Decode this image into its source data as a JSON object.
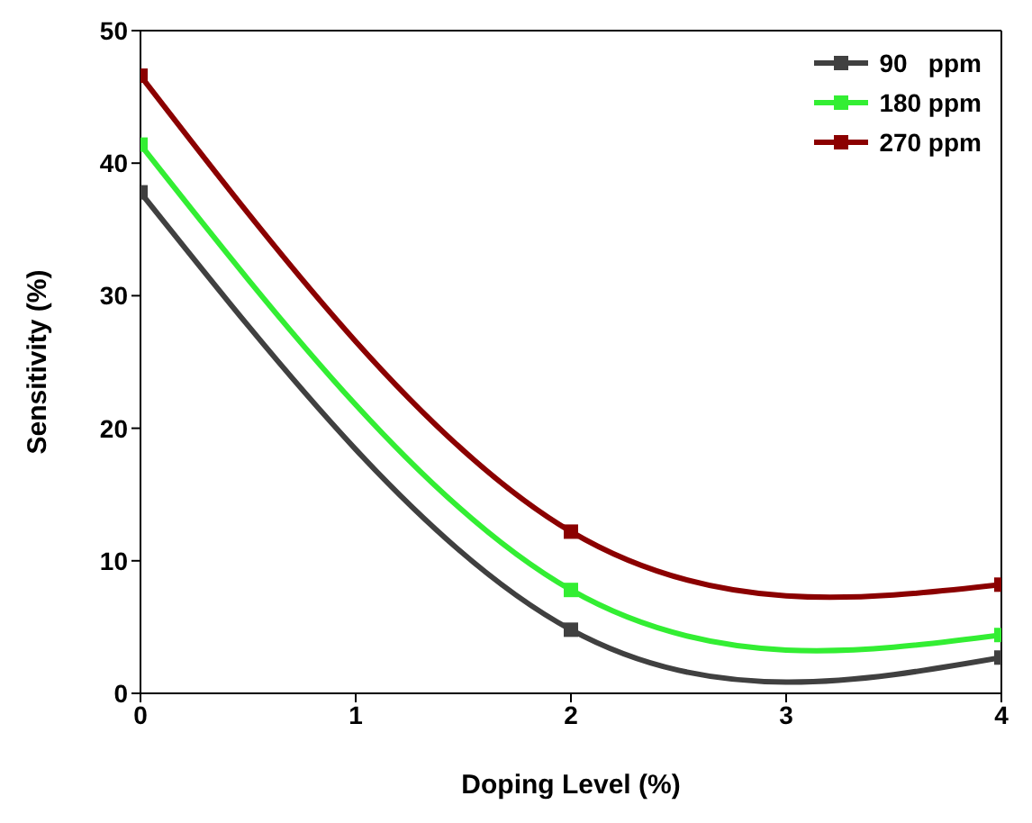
{
  "chart_data": {
    "type": "line",
    "xlabel": "Doping Level (%)",
    "ylabel": "Sensitivity (%)",
    "x": [
      0,
      2,
      4
    ],
    "series": [
      {
        "name": "90   ppm",
        "color": "#404040",
        "values": [
          37.8,
          4.8,
          2.7
        ]
      },
      {
        "name": "180 ppm",
        "color": "#33ee33",
        "values": [
          41.4,
          7.8,
          4.4
        ]
      },
      {
        "name": "270 ppm",
        "color": "#8b0000",
        "values": [
          46.6,
          12.2,
          8.2
        ]
      }
    ],
    "xlim": [
      0,
      4
    ],
    "xticks": [
      0,
      1,
      2,
      3,
      4
    ],
    "ylim": [
      0,
      50
    ],
    "yticks": [
      0,
      10,
      20,
      30,
      40,
      50
    ],
    "legend": "top right",
    "marker": "square",
    "line_style": "solid"
  }
}
